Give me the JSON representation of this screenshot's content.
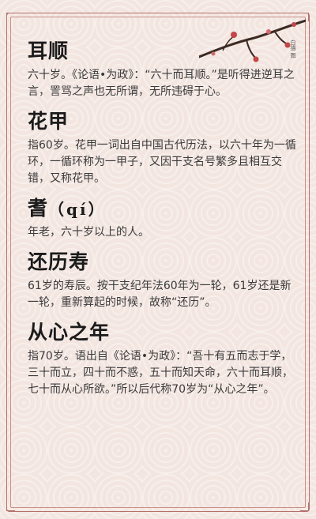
{
  "colors": {
    "background": "#f3e6e1",
    "frame": "#b4706a",
    "title": "#1b1b1b",
    "text": "#3a3a3a"
  },
  "decoration": {
    "vertical_text": "白描 图",
    "icon": "plum-branch-icon"
  },
  "entries": [
    {
      "title": "耳顺",
      "pinyin": "",
      "desc": "六十岁。《论语•为政》：“六十而耳顺。”是听得进逆耳之言，詈骂之声也无所谓，无所违碍于心。"
    },
    {
      "title": "花甲",
      "pinyin": "",
      "desc": "指60岁。花甲一词出自中国古代历法，以六十年为一循环，一循环称为一甲子，又因干支名号繁多且相互交错，又称花甲。"
    },
    {
      "title": "耆",
      "pinyin": "（qí）",
      "desc": "年老，六十岁以上的人。"
    },
    {
      "title": "还历寿",
      "pinyin": "",
      "desc": "61岁的寿辰。按干支纪年法60年为一轮，61岁还是新一轮，重新算起的时候，故称“还历”。"
    },
    {
      "title": "从心之年",
      "pinyin": "",
      "desc": "指70岁。语出自《论语•为政》：“吾十有五而志于学，三十而立，四十而不惑，五十而知天命，六十而耳顺，七十而从心所欲。”所以后代称70岁为“从心之年”。"
    }
  ]
}
